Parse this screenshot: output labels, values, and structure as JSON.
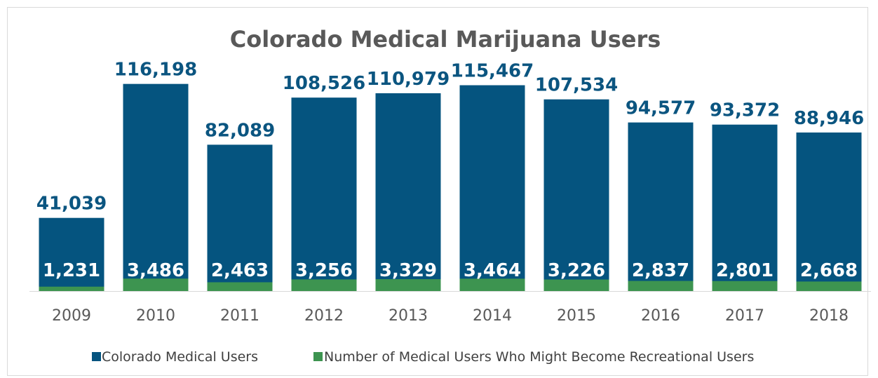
{
  "chart_data": {
    "type": "bar",
    "title": "Colorado Medical Marijuana Users",
    "categories": [
      "2009",
      "2010",
      "2011",
      "2012",
      "2013",
      "2014",
      "2015",
      "2016",
      "2017",
      "2018"
    ],
    "series": [
      {
        "name": "Colorado Medical Users",
        "color": "#05547f",
        "values": [
          41039,
          116198,
          82089,
          108526,
          110979,
          115467,
          107534,
          94577,
          93372,
          88946
        ],
        "labels": [
          "41,039",
          "116,198",
          "82,089",
          "108,526",
          "110,979",
          "115,467",
          "107,534",
          "94,577",
          "93,372",
          "88,946"
        ]
      },
      {
        "name": "Number of Medical Users Who Might Become Recreational Users",
        "color": "#3d9450",
        "values": [
          1231,
          3486,
          2463,
          3256,
          3329,
          3464,
          3226,
          2837,
          2801,
          2668
        ],
        "labels": [
          "1,231",
          "3,486",
          "2,463",
          "3,256",
          "3,329",
          "3,464",
          "3,226",
          "2,837",
          "2,801",
          "2,668"
        ]
      }
    ],
    "ylim": [
      0,
      120000
    ],
    "grid": false,
    "legend_position": "bottom"
  }
}
